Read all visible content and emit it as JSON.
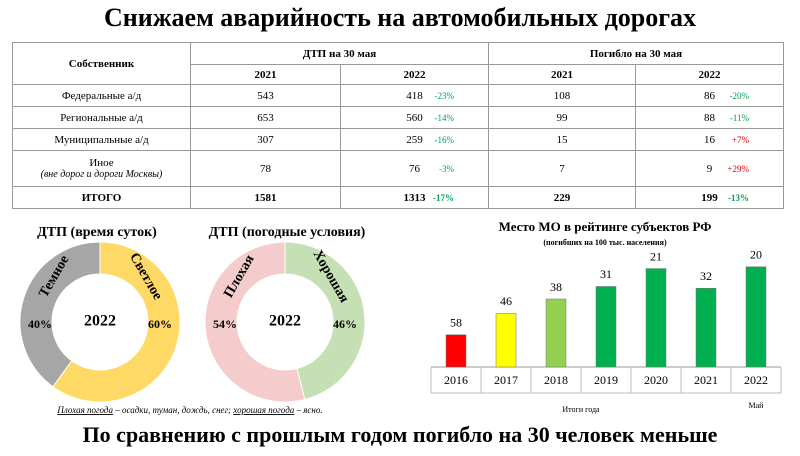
{
  "title": "Снижаем аварийность на автомобильных дорогах",
  "table": {
    "header": {
      "owner": "Собственник",
      "dtp": "ДТП на 30 мая",
      "deaths": "Погибло на 30 мая",
      "years": [
        "2021",
        "2022",
        "2021",
        "2022"
      ]
    },
    "rows": [
      {
        "name": "Федеральные а/д",
        "cells": [
          "543",
          "418",
          "-23%",
          "108",
          "86",
          "-20%"
        ]
      },
      {
        "name": "Региональные а/д",
        "cells": [
          "653",
          "560",
          "-14%",
          "99",
          "88",
          "-11%"
        ]
      },
      {
        "name": "Муниципальные а/д",
        "cells": [
          "307",
          "259",
          "-16%",
          "15",
          "16",
          "+7%"
        ]
      },
      {
        "name": "Иное",
        "note": "(вне дорог и дороги Москвы)",
        "cells": [
          "78",
          "76",
          "-3%",
          "7",
          "9",
          "+29%"
        ]
      },
      {
        "name": "ИТОГО",
        "cells": [
          "1581",
          "1313",
          "-17%",
          "229",
          "199",
          "-13%"
        ]
      }
    ]
  },
  "chart_data": [
    {
      "type": "donut",
      "title": "ДТП (время суток)",
      "center_label": "2022",
      "categories": [
        "Темное",
        "Светлое"
      ],
      "values": [
        40,
        60
      ],
      "value_labels": [
        "40%",
        "60%"
      ],
      "colors": [
        "#a6a6a6",
        "#ffd966"
      ]
    },
    {
      "type": "donut",
      "title": "ДТП (погодные условия)",
      "center_label": "2022",
      "categories": [
        "Плохая",
        "Хорошая"
      ],
      "values": [
        54,
        46
      ],
      "value_labels": [
        "54%",
        "46%"
      ],
      "colors": [
        "#f4cccc",
        "#c5e0b4"
      ]
    },
    {
      "type": "bar",
      "title": "Место МО в рейтинге субъектов РФ",
      "subtitle": "(погибших на 100 тыс. населения)",
      "categories": [
        "2016",
        "2017",
        "2018",
        "2019",
        "2020",
        "2021",
        "2022"
      ],
      "values": [
        58,
        46,
        38,
        31,
        21,
        32,
        20
      ],
      "colors": [
        "#ff0000",
        "#ffff00",
        "#92d050",
        "#00b050",
        "#00b050",
        "#00b050",
        "#00b050"
      ],
      "ylim": [
        76,
        0
      ],
      "xlabel": "Итоги года",
      "annotation": "Май"
    }
  ],
  "footnote": [
    "Плохая погода",
    " – осадки, туман, дождь, снег; ",
    "хорошая погода",
    " – ясно."
  ],
  "footer": "По сравнению с прошлым годом погибло на 30 человек меньше"
}
